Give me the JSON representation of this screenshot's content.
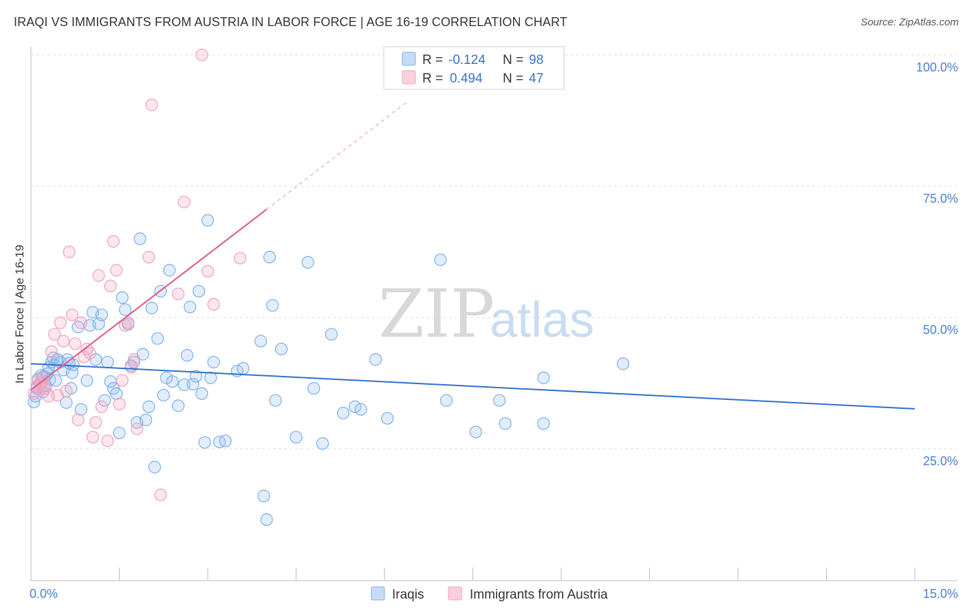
{
  "title": "IRAQI VS IMMIGRANTS FROM AUSTRIA IN LABOR FORCE | AGE 16-19 CORRELATION CHART",
  "source": "Source: ZipAtlas.com",
  "watermark": {
    "zip": "ZIP",
    "atlas": "atlas"
  },
  "legend": {
    "r_label": "R =",
    "n_label": "N =",
    "series": [
      {
        "name": "Iraqis",
        "r": "-0.124",
        "n": "98",
        "color": "#7aaee8"
      },
      {
        "name": "Immigrants from Austria",
        "r": "0.494",
        "n": "47",
        "color": "#f0a0b8"
      }
    ]
  },
  "chart_data": {
    "type": "scatter",
    "ylabel": "In Labor Force | Age 16-19",
    "xlim": [
      0,
      15
    ],
    "ylim": [
      0,
      100
    ],
    "x_tick_labels": [
      {
        "v": 0,
        "label": "0.0%"
      },
      {
        "v": 15,
        "label": "15.0%"
      }
    ],
    "y_tick_labels": [
      {
        "v": 25,
        "label": "25.0%"
      },
      {
        "v": 50,
        "label": "50.0%"
      },
      {
        "v": 75,
        "label": "75.0%"
      },
      {
        "v": 100,
        "label": "100.0%"
      }
    ],
    "grid": true,
    "series": [
      {
        "name": "Iraqis",
        "color": "#7aaee8",
        "trend": {
          "x0": 0,
          "y0": 41.2,
          "x1": 15,
          "y1": 32.6
        },
        "points": [
          [
            0.05,
            33.9
          ],
          [
            0.08,
            35.0
          ],
          [
            0.1,
            36.5
          ],
          [
            0.12,
            38.3
          ],
          [
            0.15,
            37.4
          ],
          [
            0.18,
            39.0
          ],
          [
            0.2,
            35.8
          ],
          [
            0.22,
            38.8
          ],
          [
            0.25,
            37.0
          ],
          [
            0.28,
            39.3
          ],
          [
            0.3,
            40.5
          ],
          [
            0.32,
            38.2
          ],
          [
            0.35,
            41.5
          ],
          [
            0.38,
            42.3
          ],
          [
            0.4,
            41.0
          ],
          [
            0.42,
            38.0
          ],
          [
            0.45,
            42.0
          ],
          [
            0.5,
            41.5
          ],
          [
            0.55,
            40.0
          ],
          [
            0.6,
            33.8
          ],
          [
            0.62,
            42.0
          ],
          [
            0.68,
            36.5
          ],
          [
            0.7,
            39.5
          ],
          [
            0.72,
            41.0
          ],
          [
            0.8,
            48.2
          ],
          [
            0.85,
            32.5
          ],
          [
            0.95,
            38.0
          ],
          [
            1.0,
            48.5
          ],
          [
            1.05,
            51.0
          ],
          [
            1.1,
            42.0
          ],
          [
            1.15,
            48.8
          ],
          [
            1.2,
            50.5
          ],
          [
            1.25,
            34.2
          ],
          [
            1.3,
            41.5
          ],
          [
            1.35,
            37.8
          ],
          [
            1.4,
            36.5
          ],
          [
            1.45,
            35.5
          ],
          [
            1.5,
            28.0
          ],
          [
            1.55,
            53.8
          ],
          [
            1.6,
            51.5
          ],
          [
            1.65,
            48.7
          ],
          [
            1.7,
            40.8
          ],
          [
            1.75,
            41.5
          ],
          [
            1.8,
            30.0
          ],
          [
            1.85,
            65.0
          ],
          [
            1.9,
            43.0
          ],
          [
            1.95,
            30.5
          ],
          [
            2.0,
            33.0
          ],
          [
            2.05,
            51.8
          ],
          [
            2.1,
            21.5
          ],
          [
            2.15,
            46.0
          ],
          [
            2.2,
            55.0
          ],
          [
            2.25,
            35.2
          ],
          [
            2.3,
            38.5
          ],
          [
            2.35,
            59.0
          ],
          [
            2.4,
            37.8
          ],
          [
            2.5,
            33.2
          ],
          [
            2.6,
            37.2
          ],
          [
            2.65,
            42.8
          ],
          [
            2.7,
            52.0
          ],
          [
            2.75,
            37.3
          ],
          [
            2.8,
            38.8
          ],
          [
            2.85,
            55.0
          ],
          [
            2.9,
            35.5
          ],
          [
            2.95,
            26.2
          ],
          [
            3.0,
            68.5
          ],
          [
            3.05,
            38.5
          ],
          [
            3.1,
            41.5
          ],
          [
            3.2,
            26.3
          ],
          [
            3.3,
            26.5
          ],
          [
            3.5,
            39.8
          ],
          [
            3.6,
            40.3
          ],
          [
            3.9,
            45.5
          ],
          [
            3.95,
            16.0
          ],
          [
            4.0,
            11.5
          ],
          [
            4.05,
            61.5
          ],
          [
            4.1,
            52.3
          ],
          [
            4.15,
            34.2
          ],
          [
            4.25,
            44.0
          ],
          [
            4.5,
            27.2
          ],
          [
            4.7,
            60.5
          ],
          [
            4.8,
            36.5
          ],
          [
            4.95,
            26.0
          ],
          [
            5.1,
            46.8
          ],
          [
            5.3,
            31.8
          ],
          [
            5.5,
            33.0
          ],
          [
            5.6,
            32.5
          ],
          [
            5.85,
            42.0
          ],
          [
            6.05,
            30.8
          ],
          [
            6.95,
            61.0
          ],
          [
            7.05,
            34.2
          ],
          [
            7.55,
            28.2
          ],
          [
            7.95,
            34.2
          ],
          [
            8.05,
            29.8
          ],
          [
            8.7,
            38.5
          ],
          [
            8.7,
            29.8
          ],
          [
            10.05,
            41.2
          ],
          [
            0.65,
            41.3
          ]
        ]
      },
      {
        "name": "Immigrants from Austria",
        "color": "#f0a0b8",
        "trend": {
          "x0": 0,
          "y0": 36.2,
          "x1": 4,
          "y1": 70.6,
          "x_dash_end": 6.4,
          "y_dash_end": 91.2
        },
        "points": [
          [
            0.05,
            35.5
          ],
          [
            0.1,
            36.8
          ],
          [
            0.12,
            38.0
          ],
          [
            0.15,
            36.2
          ],
          [
            0.18,
            37.5
          ],
          [
            0.2,
            38.5
          ],
          [
            0.22,
            37.0
          ],
          [
            0.25,
            36.5
          ],
          [
            0.3,
            35.0
          ],
          [
            0.35,
            43.5
          ],
          [
            0.4,
            46.8
          ],
          [
            0.45,
            35.2
          ],
          [
            0.5,
            49.0
          ],
          [
            0.55,
            45.5
          ],
          [
            0.6,
            36.0
          ],
          [
            0.65,
            62.5
          ],
          [
            0.7,
            50.5
          ],
          [
            0.75,
            45.0
          ],
          [
            0.8,
            30.5
          ],
          [
            0.85,
            49.0
          ],
          [
            0.9,
            42.5
          ],
          [
            0.95,
            44.0
          ],
          [
            1.0,
            43.2
          ],
          [
            1.05,
            27.2
          ],
          [
            1.1,
            30.0
          ],
          [
            1.15,
            58.0
          ],
          [
            1.2,
            33.0
          ],
          [
            1.3,
            26.5
          ],
          [
            1.35,
            56.0
          ],
          [
            1.4,
            64.5
          ],
          [
            1.45,
            59.0
          ],
          [
            1.5,
            33.5
          ],
          [
            1.55,
            38.0
          ],
          [
            1.6,
            48.5
          ],
          [
            1.65,
            49.0
          ],
          [
            1.7,
            40.5
          ],
          [
            1.75,
            42.0
          ],
          [
            1.8,
            28.8
          ],
          [
            2.0,
            61.5
          ],
          [
            2.05,
            90.5
          ],
          [
            2.2,
            16.2
          ],
          [
            2.5,
            54.5
          ],
          [
            2.6,
            72.0
          ],
          [
            2.9,
            100.0
          ],
          [
            3.0,
            58.8
          ],
          [
            3.1,
            52.5
          ],
          [
            3.55,
            61.3
          ]
        ]
      }
    ]
  }
}
